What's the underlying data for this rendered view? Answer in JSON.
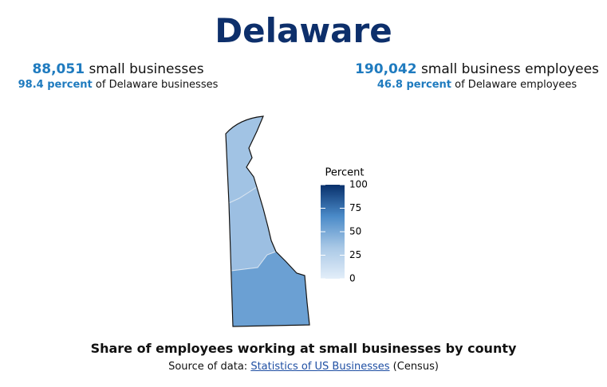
{
  "header": {
    "title": "Delaware"
  },
  "stats": [
    {
      "count": "88,051",
      "count_label": "small businesses",
      "percent": "98.4 percent",
      "percent_label": "of Delaware businesses"
    },
    {
      "count": "190,042",
      "count_label": "small business employees",
      "percent": "46.8 percent",
      "percent_label": "of Delaware employees"
    }
  ],
  "map": {
    "type": "choropleth",
    "values": [
      36,
      38,
      55
    ],
    "legend_title": "Percent",
    "range": [
      0,
      100
    ],
    "ticks": [
      0,
      25,
      50,
      75,
      100
    ],
    "colors": [
      "#e3eef9",
      "#a9c8e6",
      "#4a8ac8",
      "#08306b"
    ]
  },
  "caption": "Share of employees working at small businesses by county",
  "source": {
    "prefix": "Source of data:",
    "link": "Statistics of US Businesses",
    "suffix": "(Census)"
  }
}
